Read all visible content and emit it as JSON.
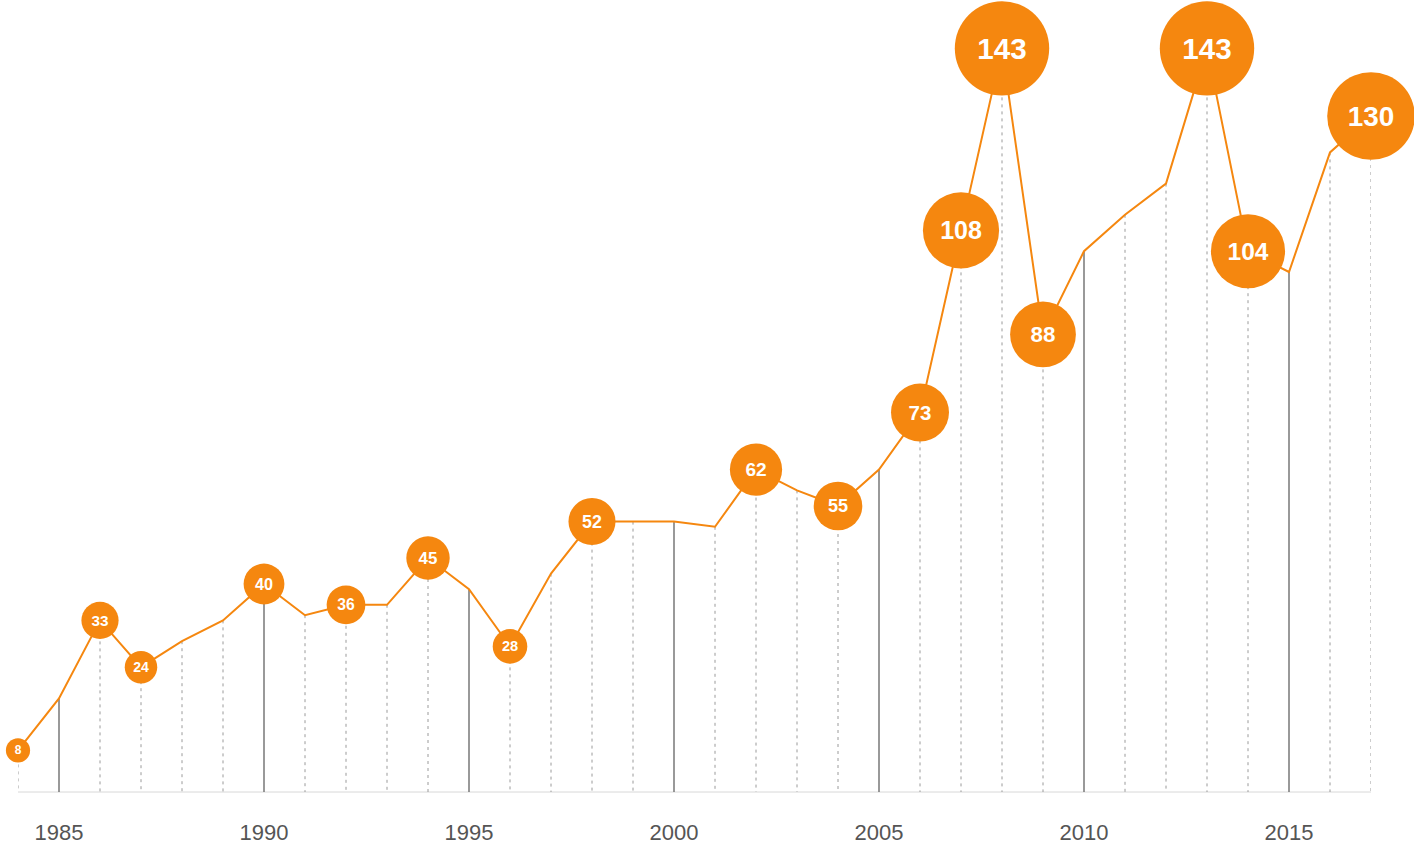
{
  "chart_data": {
    "type": "line",
    "x": [
      1984,
      1985,
      1986,
      1987,
      1988,
      1989,
      1990,
      1991,
      1992,
      1993,
      1994,
      1995,
      1996,
      1997,
      1998,
      1999,
      2000,
      2001,
      2002,
      2003,
      2004,
      2005,
      2006,
      2007,
      2008,
      2009,
      2010,
      2011,
      2012,
      2013,
      2014,
      2015,
      2016,
      2017
    ],
    "values": [
      8,
      18,
      33,
      24,
      29,
      33,
      40,
      34,
      36,
      36,
      45,
      39,
      28,
      42,
      52,
      52,
      52,
      51,
      62,
      58,
      55,
      62,
      73,
      108,
      143,
      88,
      104,
      111,
      117,
      143,
      104,
      100,
      123,
      130
    ],
    "value_labels": [
      "8",
      null,
      "33",
      "24",
      null,
      null,
      "40",
      null,
      "36",
      null,
      "45",
      null,
      "28",
      null,
      "52",
      null,
      null,
      null,
      "62",
      null,
      "55",
      null,
      "73",
      "108",
      "143",
      "88",
      null,
      null,
      null,
      "143",
      "104",
      null,
      null,
      "130"
    ],
    "color": "#f5870f",
    "xlim": [
      1984,
      2017
    ],
    "xticks": [
      1985,
      1990,
      1995,
      2000,
      2005,
      2010,
      2015
    ],
    "ylim": [
      0,
      150
    ],
    "tick_labels": "x",
    "grid": true
  }
}
